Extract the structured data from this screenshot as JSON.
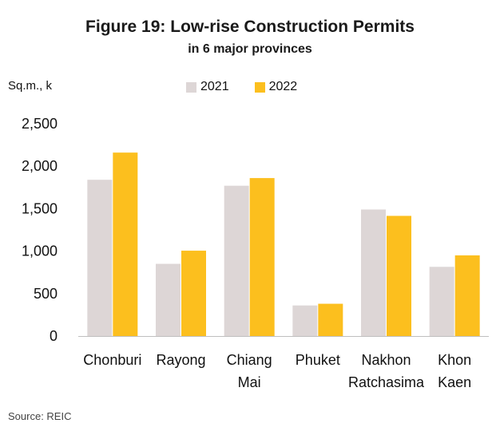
{
  "chart_data": {
    "type": "bar",
    "title": "Figure 19: Low-rise Construction  Permits",
    "subtitle": "in 6 major provinces",
    "ylabel": "Sq.m., k",
    "categories": [
      [
        "Chonburi"
      ],
      [
        "Rayong"
      ],
      [
        "Chiang",
        "Mai"
      ],
      [
        "Phuket"
      ],
      [
        "Nakhon",
        "Ratchasima"
      ],
      [
        "Khon",
        "Kaen"
      ]
    ],
    "series": [
      {
        "name": "2021",
        "color": "#ddd6d6",
        "values": [
          1840,
          850,
          1770,
          360,
          1490,
          815
        ]
      },
      {
        "name": "2022",
        "color": "#fcbf1e",
        "values": [
          2160,
          1005,
          1860,
          380,
          1415,
          950
        ]
      }
    ],
    "ylim": [
      0,
      2500
    ],
    "yticks": [
      "0",
      "500",
      "1,000",
      "1,500",
      "2,000",
      "2,500"
    ],
    "ytick_values": [
      0,
      500,
      1000,
      1500,
      2000,
      2500
    ],
    "grid": false,
    "legend_position": "top-center"
  },
  "source": "Source: REIC"
}
